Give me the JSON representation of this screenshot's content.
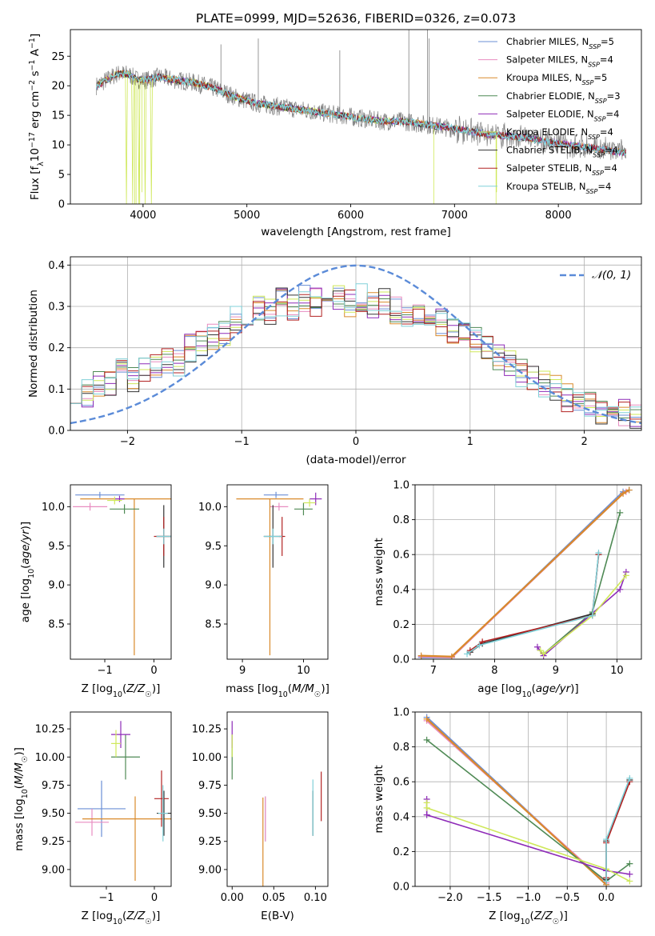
{
  "colors": {
    "Chabrier MILES": "#6b8fd6",
    "Salpeter MILES": "#e88cc0",
    "Kroupa MILES": "#d98a2b",
    "Chabrier ELODIE": "#4f8a55",
    "Salpeter ELODIE": "#8e2bb8",
    "Kroupa ELODIE": "#cfe85a",
    "Chabrier STELIB": "#333333",
    "Salpeter STELIB": "#b22222",
    "Kroupa STELIB": "#80d0d8",
    "normal": "#5b8bd8",
    "data": "#808080"
  },
  "chart_data": [
    {
      "id": "spectrum",
      "type": "line",
      "title": "PLATE=0999, MJD=52636, FIBERID=0326, z=0.073",
      "xlabel": "wavelength [Angstrom, rest frame]",
      "ylabel": "Flux [f_λ 10^-17 erg cm^-2 s^-1 A^-1]",
      "xlim": [
        3300,
        8800
      ],
      "ylim": [
        0,
        29.5
      ],
      "xticks": [
        4000,
        5000,
        6000,
        7000,
        8000
      ],
      "yticks": [
        0,
        5,
        10,
        15,
        20,
        25
      ],
      "grid": false,
      "legend_position": "top-right",
      "legend": [
        "Chabrier MILES, N_SSP=5",
        "Salpeter MILES, N_SSP=4",
        "Kroupa MILES, N_SSP=5",
        "Chabrier ELODIE, N_SSP=3",
        "Salpeter ELODIE, N_SSP=4",
        "Kroupa ELODIE, N_SSP=4",
        "Chabrier STELIB, N_SSP=4",
        "Salpeter STELIB, N_SSP=4",
        "Kroupa STELIB, N_SSP=4"
      ],
      "continuum": {
        "x": [
          3550,
          3650,
          3750,
          3850,
          3950,
          4050,
          4150,
          4300,
          4500,
          4700,
          4900,
          5100,
          5300,
          5500,
          5700,
          5900,
          6100,
          6300,
          6500,
          6700,
          6900,
          7100,
          7300,
          7500,
          7700,
          7900,
          8100,
          8300,
          8500,
          8700
        ],
        "y": [
          20,
          21,
          22,
          22,
          21,
          21,
          21.5,
          21,
          20.5,
          19.5,
          18,
          17,
          16.5,
          16,
          15.5,
          15,
          14.5,
          14,
          14,
          13.5,
          13,
          12.5,
          11.8,
          11.5,
          11.2,
          10.5,
          10,
          9.5,
          9,
          8.5
        ]
      }
    },
    {
      "id": "residuals",
      "type": "histogram",
      "xlabel": "(data-model)/error",
      "ylabel": "Normed distribution",
      "xlim": [
        -2.5,
        2.5
      ],
      "ylim": [
        0,
        0.42
      ],
      "xticks": [
        -2,
        -1,
        0,
        1,
        2
      ],
      "yticks": [
        0.0,
        0.1,
        0.2,
        0.3,
        0.4
      ],
      "grid": true,
      "legend_position": "top-right",
      "legend": [
        "𝒩(0, 1)"
      ],
      "bins": 50,
      "envelope": [
        0.1,
        0.09,
        0.11,
        0.12,
        0.14,
        0.12,
        0.15,
        0.16,
        0.17,
        0.16,
        0.2,
        0.21,
        0.23,
        0.24,
        0.27,
        0.26,
        0.3,
        0.29,
        0.31,
        0.3,
        0.32,
        0.31,
        0.33,
        0.32,
        0.31,
        0.32,
        0.3,
        0.31,
        0.29,
        0.28,
        0.29,
        0.27,
        0.26,
        0.24,
        0.23,
        0.22,
        0.2,
        0.18,
        0.16,
        0.14,
        0.13,
        0.11,
        0.1,
        0.08,
        0.07,
        0.06,
        0.05,
        0.04,
        0.04,
        0.03
      ]
    },
    {
      "id": "age-Z",
      "type": "errorbar",
      "xlabel": "Z [log10(Z/Z☉)]",
      "ylabel": "age [log10(age/yr)]",
      "xlim": [
        -1.7,
        0.35
      ],
      "ylim": [
        8.05,
        10.28
      ],
      "xticks": [
        -1,
        0
      ],
      "yticks": [
        8.5,
        9.0,
        9.5,
        10.0
      ],
      "grid": false,
      "points": [
        {
          "model": "Chabrier MILES",
          "x": -1.1,
          "y": 10.15,
          "xerr": 0.5,
          "yerr": 0.04
        },
        {
          "model": "Salpeter MILES",
          "x": -1.3,
          "y": 10.0,
          "xerr": 0.35,
          "yerr": 0.05
        },
        {
          "model": "Kroupa MILES",
          "x": -0.4,
          "y": 10.1,
          "xerr": 1.1,
          "yerr": 0.0,
          "yerr_low": 2.0
        },
        {
          "model": "Chabrier ELODIE",
          "x": -0.6,
          "y": 9.97,
          "xerr": 0.3,
          "yerr": 0.06
        },
        {
          "model": "Salpeter ELODIE",
          "x": -0.7,
          "y": 10.1,
          "xerr": 0.1,
          "yerr": 0.04
        },
        {
          "model": "Kroupa ELODIE",
          "x": -0.8,
          "y": 10.08,
          "xerr": 0.15,
          "yerr": 0.05
        },
        {
          "model": "Chabrier STELIB",
          "x": 0.2,
          "y": 9.62,
          "xerr": 0.15,
          "yerr": 0.4
        },
        {
          "model": "Salpeter STELIB",
          "x": 0.2,
          "y": 9.62,
          "xerr": 0.2,
          "yerr": 0.25
        },
        {
          "model": "Kroupa STELIB",
          "x": 0.2,
          "y": 9.62,
          "xerr": 0.15,
          "yerr": 0.1
        }
      ]
    },
    {
      "id": "age-mass",
      "type": "errorbar",
      "xlabel": "mass [log10(M/M☉)]",
      "ylabel": "",
      "xlim": [
        8.75,
        10.4
      ],
      "ylim": [
        8.05,
        10.28
      ],
      "xticks": [
        9,
        10
      ],
      "yticks": [
        8.5,
        9.0,
        9.5,
        10.0
      ],
      "grid": false,
      "points": [
        {
          "model": "Chabrier MILES",
          "x": 9.55,
          "y": 10.15,
          "xerr": 0.2,
          "yerr": 0.04
        },
        {
          "model": "Salpeter MILES",
          "x": 9.6,
          "y": 10.0,
          "xerr": 0.15,
          "yerr": 0.05
        },
        {
          "model": "Kroupa MILES",
          "x": 9.45,
          "y": 10.1,
          "xerr": 0.55,
          "yerr": 0.0,
          "yerr_low": 2.0
        },
        {
          "model": "Chabrier ELODIE",
          "x": 10.0,
          "y": 9.97,
          "xerr": 0.15,
          "yerr": 0.08
        },
        {
          "model": "Salpeter ELODIE",
          "x": 10.2,
          "y": 10.1,
          "xerr": 0.1,
          "yerr": 0.08
        },
        {
          "model": "Kroupa ELODIE",
          "x": 10.1,
          "y": 10.05,
          "xerr": 0.1,
          "yerr": 0.05
        },
        {
          "model": "Chabrier STELIB",
          "x": 9.5,
          "y": 9.62,
          "xerr": 0.15,
          "yerr": 0.4
        },
        {
          "model": "Salpeter STELIB",
          "x": 9.65,
          "y": 9.62,
          "xerr": 0.05,
          "yerr": 0.25
        },
        {
          "model": "Kroupa STELIB",
          "x": 9.5,
          "y": 9.62,
          "xerr": 0.15,
          "yerr": 0.1
        }
      ]
    },
    {
      "id": "weight-age",
      "type": "line",
      "xlabel": "age [log10(age/yr)]",
      "ylabel": "mass weight",
      "xlim": [
        6.7,
        10.4
      ],
      "ylim": [
        0,
        1.0
      ],
      "xticks": [
        7,
        8,
        9,
        10
      ],
      "yticks": [
        0.0,
        0.2,
        0.4,
        0.6,
        0.8,
        1.0
      ],
      "grid": true,
      "series": [
        {
          "model": "Chabrier MILES",
          "x": [
            6.8,
            7.3,
            10.1,
            10.2
          ],
          "y": [
            0.01,
            0.01,
            0.96,
            0.97
          ]
        },
        {
          "model": "Salpeter MILES",
          "x": [
            6.8,
            7.3,
            10.1,
            10.15
          ],
          "y": [
            0.015,
            0.01,
            0.95,
            0.96
          ]
        },
        {
          "model": "Kroupa MILES",
          "x": [
            6.8,
            7.3,
            10.1,
            10.2
          ],
          "y": [
            0.02,
            0.015,
            0.95,
            0.97
          ]
        },
        {
          "model": "Chabrier ELODIE",
          "x": [
            8.8,
            9.6,
            10.05
          ],
          "y": [
            0.03,
            0.27,
            0.84
          ]
        },
        {
          "model": "Salpeter ELODIE",
          "x": [
            8.7,
            8.8,
            10.05,
            10.15
          ],
          "y": [
            0.07,
            0.02,
            0.4,
            0.5
          ]
        },
        {
          "model": "Kroupa ELODIE",
          "x": [
            8.75,
            8.8,
            9.6,
            10.15
          ],
          "y": [
            0.05,
            0.03,
            0.25,
            0.48
          ]
        },
        {
          "model": "Chabrier STELIB",
          "x": [
            7.6,
            7.8,
            9.6,
            9.7
          ],
          "y": [
            0.04,
            0.09,
            0.26,
            0.6
          ]
        },
        {
          "model": "Salpeter STELIB",
          "x": [
            7.6,
            7.8,
            9.6,
            9.7
          ],
          "y": [
            0.05,
            0.1,
            0.25,
            0.6
          ]
        },
        {
          "model": "Kroupa STELIB",
          "x": [
            7.55,
            7.75,
            9.6,
            9.7
          ],
          "y": [
            0.03,
            0.08,
            0.25,
            0.61
          ]
        }
      ]
    },
    {
      "id": "mass-Z",
      "type": "errorbar",
      "xlabel": "Z [log10(Z/Z☉)]",
      "ylabel": "mass [log10(M/M☉)]",
      "xlim": [
        -1.75,
        0.35
      ],
      "ylim": [
        8.85,
        10.4
      ],
      "xticks": [
        -1,
        0
      ],
      "yticks": [
        9.0,
        9.25,
        9.5,
        9.75,
        10.0,
        10.25
      ],
      "grid": false,
      "points": [
        {
          "model": "Chabrier MILES",
          "x": -1.1,
          "y": 9.54,
          "xerr": 0.5,
          "yerr": 0.25
        },
        {
          "model": "Salpeter MILES",
          "x": -1.3,
          "y": 9.42,
          "xerr": 0.35,
          "yerr": 0.12
        },
        {
          "model": "Kroupa MILES",
          "x": -0.4,
          "y": 9.45,
          "xerr": 1.1,
          "yerr": 0.2,
          "yerr_low": 0.55
        },
        {
          "model": "Chabrier ELODIE",
          "x": -0.6,
          "y": 10.0,
          "xerr": 0.3,
          "yerr": 0.2
        },
        {
          "model": "Salpeter ELODIE",
          "x": -0.7,
          "y": 10.2,
          "xerr": 0.2,
          "yerr": 0.12
        },
        {
          "model": "Kroupa ELODIE",
          "x": -0.8,
          "y": 10.12,
          "xerr": 0.1,
          "yerr": 0.12
        },
        {
          "model": "Chabrier STELIB",
          "x": 0.2,
          "y": 9.5,
          "xerr": 0.15,
          "yerr": 0.2
        },
        {
          "model": "Salpeter STELIB",
          "x": 0.15,
          "y": 9.63,
          "xerr": 0.15,
          "yerr": 0.25
        },
        {
          "model": "Kroupa STELIB",
          "x": 0.18,
          "y": 9.5,
          "xerr": 0.1,
          "yerr": 0.25
        }
      ]
    },
    {
      "id": "mass-EBV",
      "type": "errorbar",
      "xlabel": "E(B-V)",
      "ylabel": "",
      "xlim": [
        -0.006,
        0.115
      ],
      "ylim": [
        8.85,
        10.4
      ],
      "xticks": [
        0.0,
        0.05,
        0.1
      ],
      "yticks": [
        9.0,
        9.25,
        9.5,
        9.75,
        10.0,
        10.25
      ],
      "grid": false,
      "points": [
        {
          "model": "Chabrier MILES",
          "x": 0.04,
          "y": 9.45,
          "xerr": 0,
          "yerr": 0.2
        },
        {
          "model": "Salpeter MILES",
          "x": 0.04,
          "y": 9.45,
          "xerr": 0,
          "yerr": 0.2
        },
        {
          "model": "Kroupa MILES",
          "x": 0.037,
          "y": 9.2,
          "xerr": 0,
          "yerr": 0.44
        },
        {
          "model": "Chabrier ELODIE",
          "x": 0.0,
          "y": 10.0,
          "xerr": 0,
          "yerr": 0.2
        },
        {
          "model": "Salpeter ELODIE",
          "x": 0.0,
          "y": 10.2,
          "xerr": 0,
          "yerr": 0.12
        },
        {
          "model": "Kroupa ELODIE",
          "x": 0.0,
          "y": 10.1,
          "xerr": 0,
          "yerr": 0.1
        },
        {
          "model": "Chabrier STELIB",
          "x": 0.097,
          "y": 9.5,
          "xerr": 0,
          "yerr": 0.2
        },
        {
          "model": "Salpeter STELIB",
          "x": 0.107,
          "y": 9.65,
          "xerr": 0,
          "yerr": 0.22
        },
        {
          "model": "Kroupa STELIB",
          "x": 0.097,
          "y": 9.55,
          "xerr": 0,
          "yerr": 0.25
        }
      ]
    },
    {
      "id": "weight-Z",
      "type": "line",
      "xlabel": "Z [log10(Z/Z☉)]",
      "ylabel": "mass weight",
      "xlim": [
        -2.45,
        0.45
      ],
      "ylim": [
        0,
        1.0
      ],
      "xticks": [
        -2.0,
        -1.5,
        -1.0,
        -0.5,
        0.0
      ],
      "yticks": [
        0.0,
        0.2,
        0.4,
        0.6,
        0.8,
        1.0
      ],
      "grid": true,
      "series": [
        {
          "model": "Chabrier MILES",
          "x": [
            -2.3,
            0.0
          ],
          "y": [
            0.97,
            0.01
          ]
        },
        {
          "model": "Salpeter MILES",
          "x": [
            -2.3,
            0.0
          ],
          "y": [
            0.95,
            0.02
          ]
        },
        {
          "model": "Kroupa MILES",
          "x": [
            -2.3,
            0.0
          ],
          "y": [
            0.96,
            0.01
          ]
        },
        {
          "model": "Chabrier ELODIE",
          "x": [
            -2.3,
            0.0,
            0.3
          ],
          "y": [
            0.84,
            0.03,
            0.13
          ]
        },
        {
          "model": "Salpeter ELODIE",
          "x": [
            -2.3,
            -2.3,
            0.0,
            0.3
          ],
          "y": [
            0.5,
            0.41,
            0.09,
            0.07
          ]
        },
        {
          "model": "Kroupa ELODIE",
          "x": [
            -2.3,
            -2.3,
            0.0,
            0.3
          ],
          "y": [
            0.48,
            0.45,
            0.1,
            0.03
          ]
        },
        {
          "model": "Chabrier STELIB",
          "x": [
            0.0,
            0.0,
            0.3
          ],
          "y": [
            0.04,
            0.26,
            0.61
          ]
        },
        {
          "model": "Salpeter STELIB",
          "x": [
            0.0,
            0.0,
            0.3
          ],
          "y": [
            0.05,
            0.25,
            0.6
          ]
        },
        {
          "model": "Kroupa STELIB",
          "x": [
            0.0,
            0.0,
            0.3
          ],
          "y": [
            0.03,
            0.27,
            0.62
          ]
        }
      ]
    }
  ]
}
